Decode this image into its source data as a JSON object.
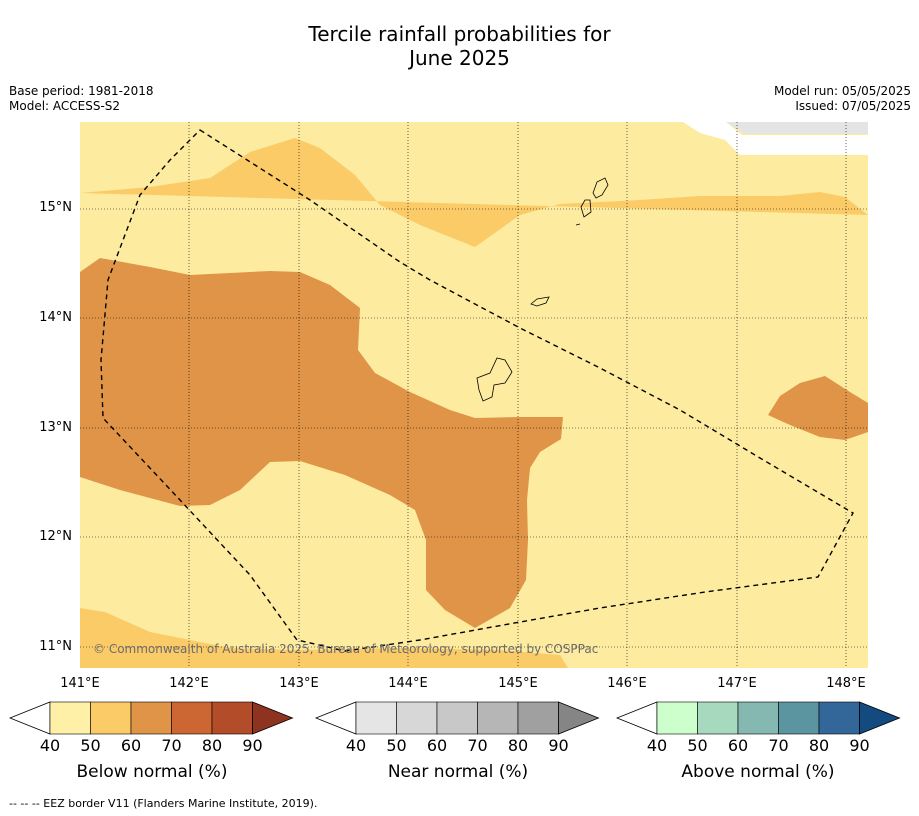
{
  "title_line1": "Tercile rainfall probabilities for",
  "title_line2": "June 2025",
  "meta_left": {
    "base_period": "Base period: 1981-2018",
    "model": "Model: ACCESS-S2"
  },
  "meta_right": {
    "model_run": "Model run: 05/05/2025",
    "issued": "Issued: 07/05/2025"
  },
  "map": {
    "lat_labels": [
      "15°N",
      "14°N",
      "13°N",
      "12°N",
      "11°N"
    ],
    "lon_labels": [
      "141°E",
      "142°E",
      "143°E",
      "144°E",
      "145°E",
      "146°E",
      "147°E",
      "148°E"
    ],
    "copyright": "© Commonwealth of Australia 2025, Bureau of Meteorology, supported by COSPPac",
    "colors": {
      "below_40_50": "#fdeba0",
      "below_50_60": "#fbcb68",
      "below_60_70": "#df9447",
      "near_40_50": "#e4e4e4",
      "eez_line": "#000000"
    }
  },
  "colorbars": [
    {
      "title": "Below normal (%)",
      "ticks": [
        "40",
        "50",
        "60",
        "70",
        "80",
        "90"
      ],
      "colors": [
        "#ffffff",
        "#fff0a8",
        "#fbcb68",
        "#df9447",
        "#cc6633",
        "#b34c29",
        "#8e3320"
      ]
    },
    {
      "title": "Near normal (%)",
      "ticks": [
        "40",
        "50",
        "60",
        "70",
        "80",
        "90"
      ],
      "colors": [
        "#ffffff",
        "#e5e5e5",
        "#d7d7d7",
        "#c8c8c8",
        "#b6b6b6",
        "#a0a0a0",
        "#858585"
      ]
    },
    {
      "title": "Above normal (%)",
      "ticks": [
        "40",
        "50",
        "60",
        "70",
        "80",
        "90"
      ],
      "colors": [
        "#ffffff",
        "#ccffcc",
        "#a6d9bd",
        "#84b8b0",
        "#5b95a0",
        "#336699",
        "#134b80"
      ]
    }
  ],
  "footnote": "--  --  -- EEZ border V11 (Flanders Marine Institute, 2019)."
}
